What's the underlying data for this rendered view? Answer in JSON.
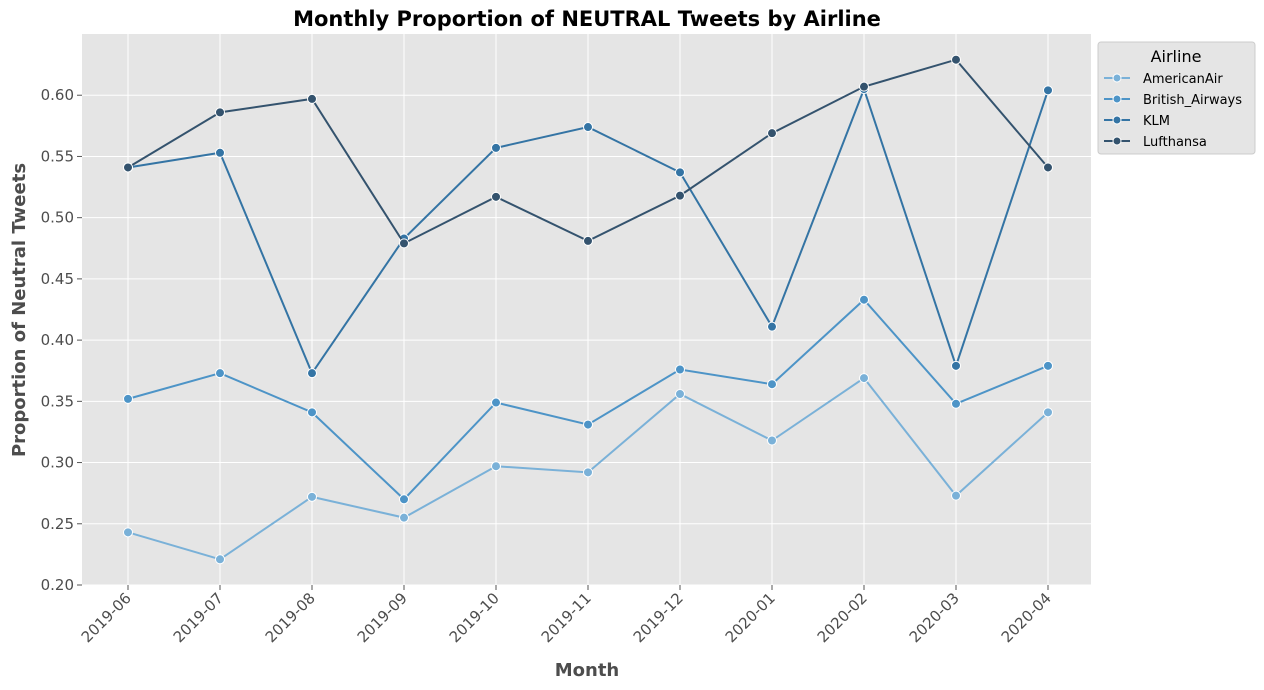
{
  "chart_data": {
    "type": "line",
    "title": "Monthly Proportion of NEUTRAL Tweets by Airline",
    "xlabel": "Month",
    "ylabel": "Proportion of Neutral Tweets",
    "x": [
      "2019-06",
      "2019-07",
      "2019-08",
      "2019-09",
      "2019-10",
      "2019-11",
      "2019-12",
      "2020-01",
      "2020-02",
      "2020-03",
      "2020-04"
    ],
    "yticks": [
      "0.20",
      "0.25",
      "0.30",
      "0.35",
      "0.40",
      "0.45",
      "0.50",
      "0.55",
      "0.60"
    ],
    "ylim": [
      0.2,
      0.65
    ],
    "grid": true,
    "legend": {
      "title": "Airline",
      "placement": "outside-top-right"
    },
    "series": [
      {
        "name": "AmericanAir",
        "color": "#7ab1d8",
        "values": [
          0.243,
          0.221,
          0.272,
          0.255,
          0.297,
          0.292,
          0.356,
          0.318,
          0.369,
          0.273,
          0.341
        ]
      },
      {
        "name": "British_Airways",
        "color": "#4d94c7",
        "values": [
          0.352,
          0.373,
          0.341,
          0.27,
          0.349,
          0.331,
          0.376,
          0.364,
          0.433,
          0.348,
          0.379
        ]
      },
      {
        "name": "KLM",
        "color": "#3474a4",
        "values": [
          0.541,
          0.553,
          0.373,
          0.483,
          0.557,
          0.574,
          0.537,
          0.411,
          0.605,
          0.379,
          0.604
        ]
      },
      {
        "name": "Lufthansa",
        "color": "#34536e",
        "values": [
          0.541,
          0.586,
          0.597,
          0.479,
          0.517,
          0.481,
          0.518,
          0.569,
          0.607,
          0.629,
          0.541
        ]
      }
    ]
  }
}
